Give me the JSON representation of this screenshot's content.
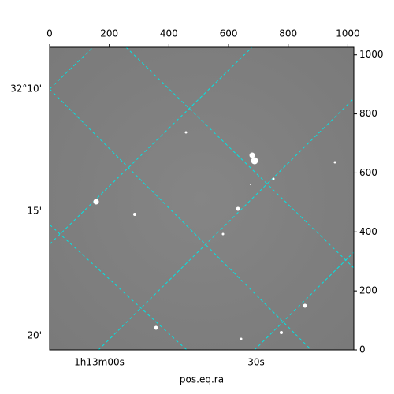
{
  "chart_data": {
    "type": "image",
    "xlim": [
      0,
      1020
    ],
    "xticks": [
      0,
      200,
      400,
      600,
      800,
      1000
    ],
    "ylim": [
      0,
      1026
    ],
    "yticks": [
      0,
      200,
      400,
      600,
      800,
      1000
    ],
    "left_labels": [
      "32°10'",
      "15'",
      "20'"
    ],
    "bottom_labels": [
      "1h13m00s",
      "30s"
    ],
    "xlabel": "pos.eq.ra"
  }
}
